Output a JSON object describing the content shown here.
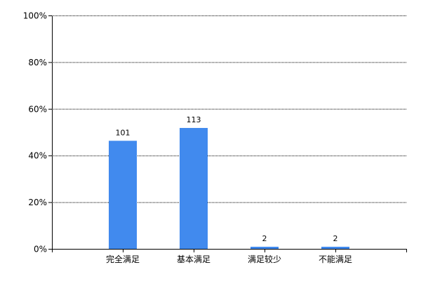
{
  "chart_data": {
    "type": "bar",
    "categories": [
      "完全满足",
      "基本满足",
      "满足较少",
      "不能满足"
    ],
    "counts": [
      101,
      113,
      2,
      2
    ],
    "values_percent": [
      46.3,
      51.8,
      0.9,
      0.9
    ],
    "data_labels": [
      "101",
      "113",
      "2",
      "2"
    ],
    "yticks": [
      "0%",
      "20%",
      "40%",
      "60%",
      "80%",
      "100%"
    ],
    "ylim": [
      0,
      100
    ],
    "grid": true,
    "bar_color": "#418AEE",
    "title": "",
    "xlabel": "",
    "ylabel": ""
  }
}
